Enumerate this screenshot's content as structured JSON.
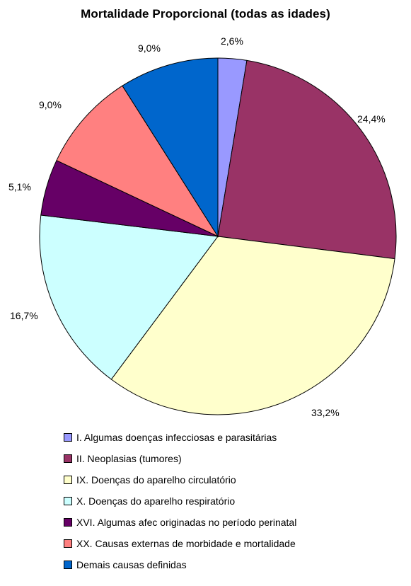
{
  "chart_data": {
    "type": "pie",
    "title": "Mortalidade Proporcional (todas as idades)",
    "slices": [
      {
        "label": "I.   Algumas doenças infecciosas e parasitárias",
        "value": 2.6,
        "display": "2,6%",
        "color": "#9999ff"
      },
      {
        "label": "II. Neoplasias (tumores)",
        "value": 24.4,
        "display": "24,4%",
        "color": "#993366"
      },
      {
        "label": "IX. Doenças do aparelho circulatório",
        "value": 33.2,
        "display": "33,2%",
        "color": "#ffffcc"
      },
      {
        "label": "X.   Doenças do aparelho respiratório",
        "value": 16.7,
        "display": "16,7%",
        "color": "#ccffff"
      },
      {
        "label": "XVI. Algumas afec originadas no período perinatal",
        "value": 5.1,
        "display": "5,1%",
        "color": "#660066"
      },
      {
        "label": "XX. Causas externas de morbidade e mortalidade",
        "value": 9.0,
        "display": "9,0%",
        "color": "#ff8080"
      },
      {
        "label": "Demais causas definidas",
        "value": 9.0,
        "display": "9,0%",
        "color": "#0066cc"
      }
    ],
    "legend_position": "bottom",
    "start": "top",
    "direction": "clockwise"
  }
}
